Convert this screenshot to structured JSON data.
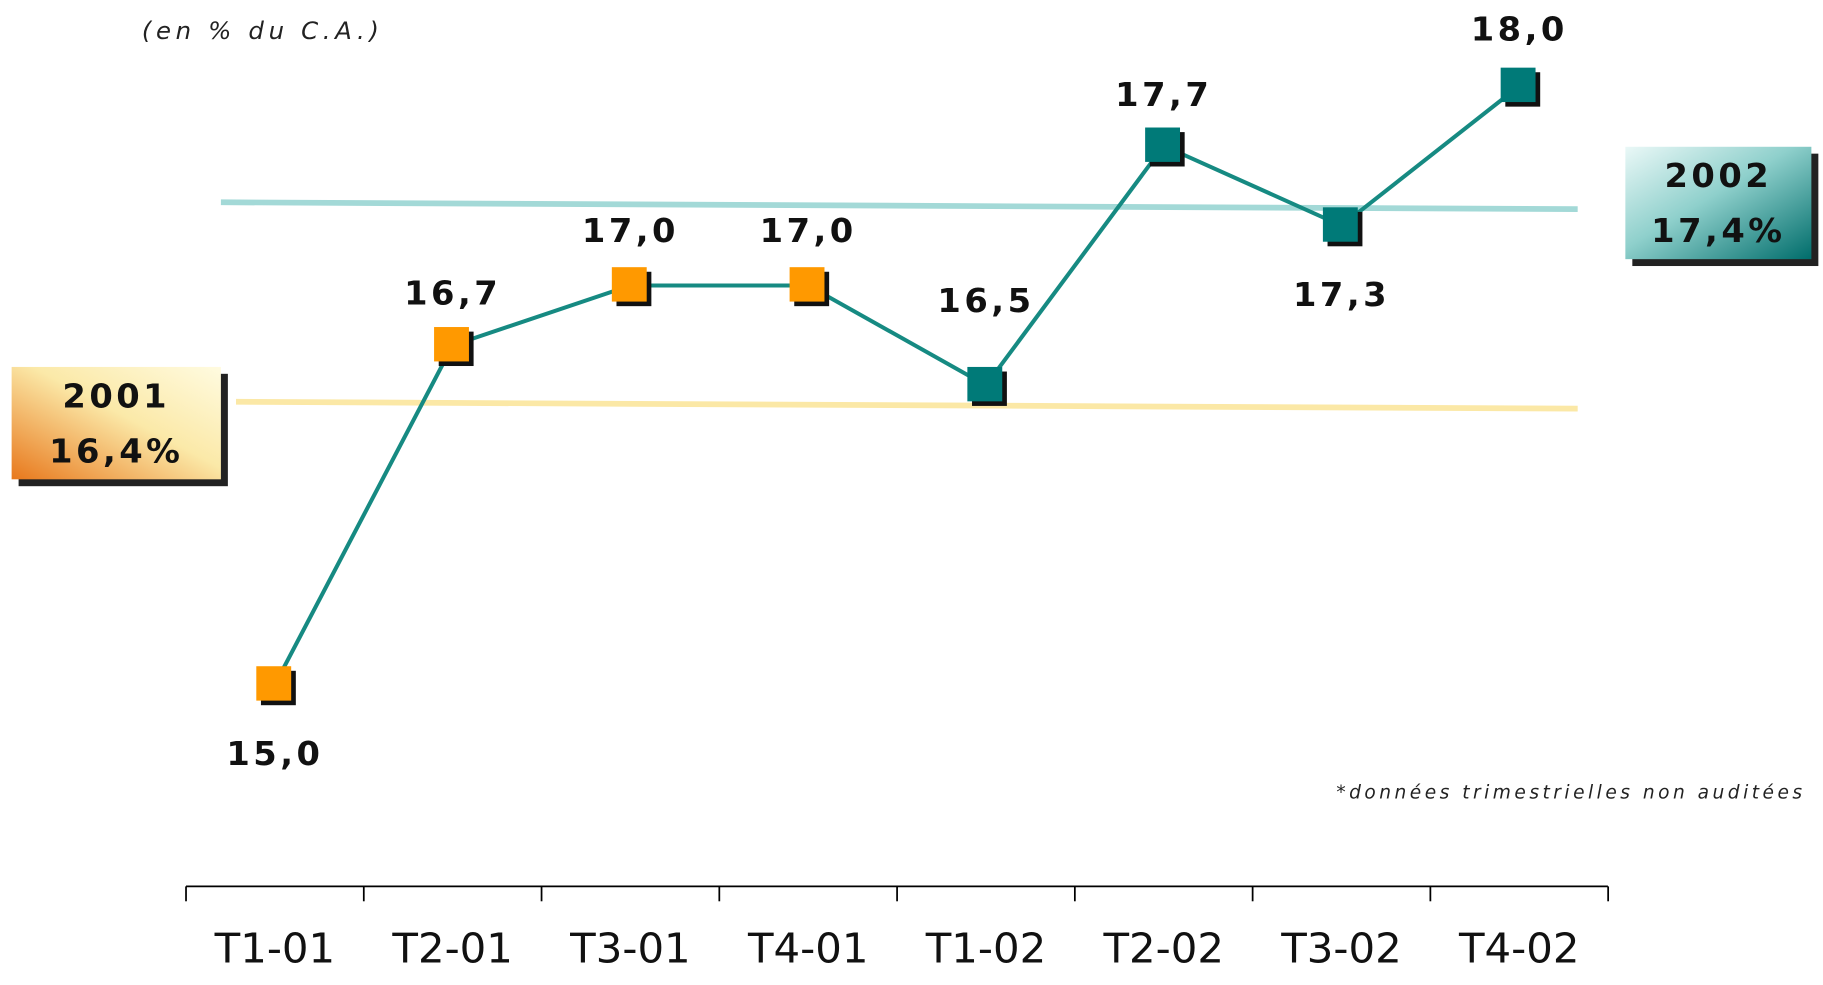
{
  "chart_data": {
    "type": "line",
    "subtitle": "(en % du C.A.)",
    "footnote": "*données trimestrielles non auditées",
    "categories": [
      "T1-01",
      "T2-01",
      "T3-01",
      "T4-01",
      "T1-02",
      "T2-02",
      "T3-02",
      "T4-02"
    ],
    "series": [
      {
        "color": "#168a82",
        "values": [
          15.0,
          16.7,
          17.0,
          17.0,
          16.5,
          17.7,
          17.3,
          18.0
        ],
        "value_labels": [
          "15,0",
          "16,7",
          "17,0",
          "17,0",
          "16,5",
          "17,7",
          "17,3",
          "18,0"
        ],
        "marker_colors": [
          "#ff9900",
          "#ff9900",
          "#ff9900",
          "#ff9900",
          "#007a78",
          "#007a78",
          "#007a78",
          "#007a78"
        ]
      }
    ],
    "reference_lines": [
      {
        "label": "2001",
        "value": 16.4,
        "value_label": "16,4%",
        "color": "#fbe8a6"
      },
      {
        "label": "2002",
        "value": 17.4,
        "value_label": "17,4%",
        "color": "#a3d9d7"
      }
    ]
  }
}
